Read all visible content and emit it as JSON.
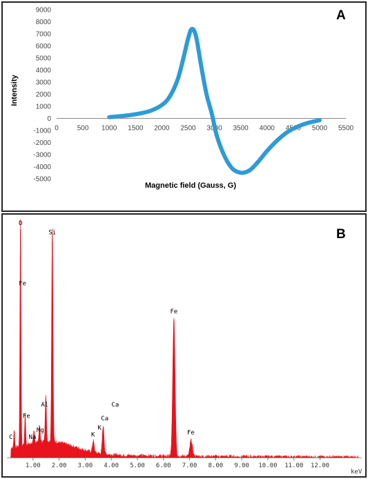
{
  "panels": {
    "a_label": "A",
    "b_label": "B"
  },
  "chart_data": [
    {
      "panel": "A",
      "type": "line",
      "xlabel": "Magnetic field (Gauss,  G)",
      "ylabel": "Intensity",
      "xlim": [
        0,
        5500
      ],
      "ylim": [
        -5000,
        9000
      ],
      "x_ticks": [
        0,
        500,
        1000,
        1500,
        2000,
        2500,
        3000,
        3500,
        4000,
        4500,
        5000,
        5500
      ],
      "y_ticks": [
        -5000,
        -4000,
        -3000,
        -2000,
        -1000,
        0,
        1000,
        2000,
        3000,
        4000,
        5000,
        6000,
        7000,
        8000,
        9000
      ],
      "color": "#2e9bd6",
      "series": [
        {
          "x": [
            1000,
            1300,
            1600,
            1800,
            2000,
            2150,
            2300,
            2400,
            2500,
            2570,
            2650,
            2750,
            2850,
            2950,
            3050,
            3200,
            3350,
            3500,
            3600,
            3700,
            3850,
            4000,
            4200,
            4400,
            4600,
            4800,
            5000
          ],
          "y": [
            100,
            220,
            420,
            650,
            1100,
            1800,
            3200,
            4800,
            6600,
            7400,
            6800,
            4300,
            2000,
            400,
            -1500,
            -3200,
            -4200,
            -4500,
            -4450,
            -4200,
            -3500,
            -2700,
            -1800,
            -1100,
            -650,
            -350,
            -150
          ]
        }
      ]
    },
    {
      "panel": "B",
      "type": "area",
      "xlabel": "keV",
      "x_ticks": [
        1.0,
        2.0,
        3.0,
        4.0,
        5.0,
        6.0,
        7.0,
        8.0,
        9.0,
        10.0,
        11.0,
        12.0
      ],
      "x_tick_labels": [
        "1.00",
        "2.00",
        "3.00",
        "4.00",
        "5.00",
        "6.00",
        "7.00",
        "8.00",
        "9.00",
        "10.00",
        "11.00",
        "12.00"
      ],
      "xlim": [
        0,
        13.6
      ],
      "ylim": [
        0,
        100
      ],
      "color": "#e8131d",
      "peaks": [
        {
          "element": "C",
          "energy": 0.28,
          "intensity": 8
        },
        {
          "element": "O",
          "energy": 0.52,
          "intensity": 98
        },
        {
          "element": "Fe",
          "energy": 0.7,
          "intensity": 13
        },
        {
          "element": "Na",
          "energy": 1.04,
          "intensity": 5
        },
        {
          "element": "Mg",
          "energy": 1.25,
          "intensity": 7
        },
        {
          "element": "Al",
          "energy": 1.49,
          "intensity": 20
        },
        {
          "element": "Si",
          "energy": 1.74,
          "intensity": 93
        },
        {
          "element": "K",
          "energy": 3.31,
          "intensity": 5
        },
        {
          "element": "Ca",
          "energy": 3.69,
          "intensity": 12
        },
        {
          "element": "Fe",
          "energy": 6.4,
          "intensity": 59
        },
        {
          "element": "Fe",
          "energy": 7.06,
          "intensity": 7
        }
      ],
      "annotations": [
        {
          "text": "O",
          "energy": 0.52,
          "level": 100
        },
        {
          "text": "Si",
          "energy": 1.74,
          "level": 96
        },
        {
          "text": "Fe",
          "energy": 0.6,
          "level": 74
        },
        {
          "text": "Fe",
          "energy": 6.4,
          "level": 62
        },
        {
          "text": "Al",
          "energy": 1.45,
          "level": 22
        },
        {
          "text": "Fe",
          "energy": 0.75,
          "level": 17
        },
        {
          "text": "Mg",
          "energy": 1.28,
          "level": 11
        },
        {
          "text": "Na",
          "energy": 0.98,
          "level": 8
        },
        {
          "text": "C",
          "energy": 0.15,
          "level": 8
        },
        {
          "text": "K",
          "energy": 3.3,
          "level": 9
        },
        {
          "text": "K",
          "energy": 3.55,
          "level": 12
        },
        {
          "text": "Ca",
          "energy": 3.75,
          "level": 16
        },
        {
          "text": "Ca",
          "energy": 4.15,
          "level": 22
        },
        {
          "text": "Fe",
          "energy": 7.05,
          "level": 10
        }
      ]
    }
  ]
}
